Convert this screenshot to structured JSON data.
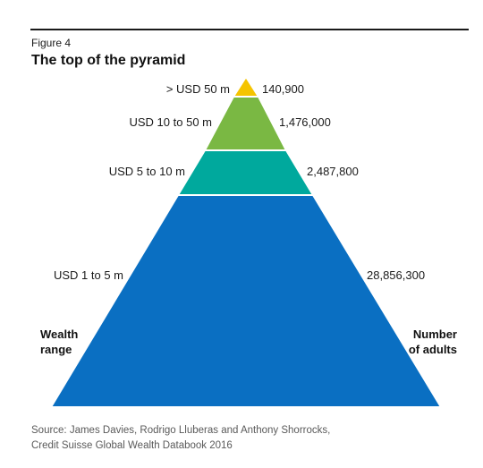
{
  "figure": {
    "label": "Figure 4",
    "title": "The top of the pyramid"
  },
  "axis_titles": {
    "left": [
      "Wealth",
      "range"
    ],
    "right": [
      "Number",
      "of adults"
    ]
  },
  "tiers": [
    {
      "range": "> USD 50 m",
      "adults": "140,900",
      "color": "#f5c400"
    },
    {
      "range": "USD 10 to 50 m",
      "adults": "1,476,000",
      "color": "#7ab843"
    },
    {
      "range": "USD 5 to 10 m",
      "adults": "2,487,800",
      "color": "#00a99d"
    },
    {
      "range": "USD 1 to 5 m",
      "adults": "28,856,300",
      "color": "#0a6fc2"
    }
  ],
  "source": [
    "Source: James Davies, Rodrigo Lluberas and Anthony Shorrocks,",
    "Credit Suisse Global Wealth Databook 2016"
  ]
}
